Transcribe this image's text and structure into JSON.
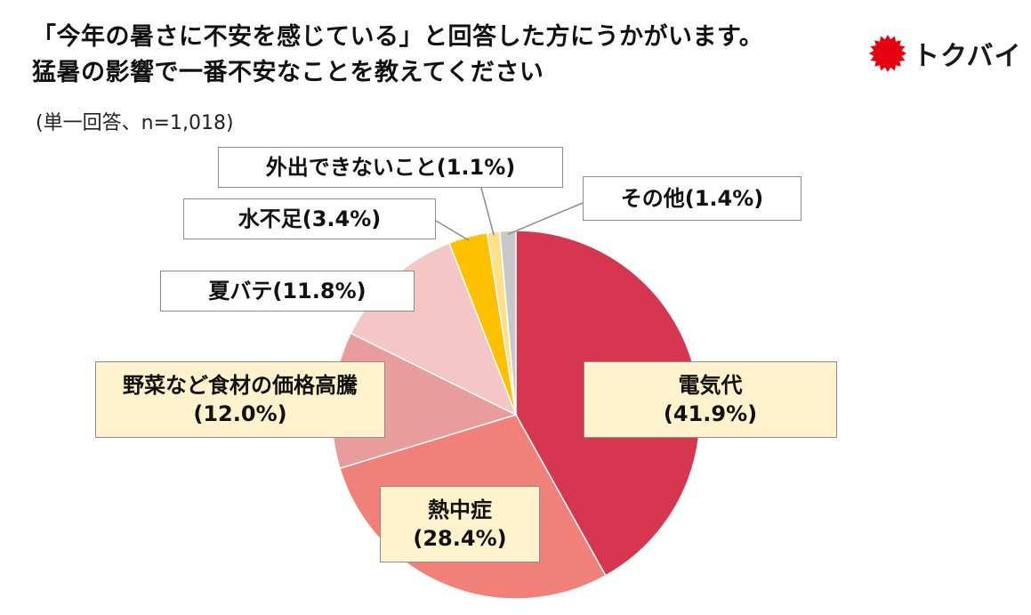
{
  "header": {
    "title_line1": "「今年の暑さに不安を感じている」と回答した方にうかがいます。",
    "title_line2": "猛暑の影響で一番不安なことを教えてください",
    "note": "(単一回答、n=1,018)"
  },
  "logo": {
    "text": "トクバイ",
    "icon": "red-starburst-icon",
    "color": "#e60012"
  },
  "chart_data": {
    "type": "pie",
    "start": "12 o'clock",
    "direction": "clockwise",
    "slices": [
      {
        "label": "電気代",
        "pct": "(41.9%)",
        "value": 41.9,
        "color": "#d63650"
      },
      {
        "label": "熱中症",
        "pct": "(28.4%)",
        "value": 28.4,
        "color": "#f08078"
      },
      {
        "label": "野菜など食材の価格高騰",
        "pct": "(12.0%)",
        "value": 12.0,
        "color": "#e89c9c"
      },
      {
        "label": "夏バテ",
        "pct": "(11.8%)",
        "value": 11.8,
        "color": "#f4c6c6"
      },
      {
        "label": "水不足",
        "pct": "(3.4%)",
        "value": 3.4,
        "color": "#ffc000"
      },
      {
        "label": "外出できないこと",
        "pct": "(1.1%)",
        "value": 1.1,
        "color": "#ffe08a"
      },
      {
        "label": "その他",
        "pct": "(1.4%)",
        "value": 1.4,
        "color": "#c8c8c8"
      }
    ]
  }
}
